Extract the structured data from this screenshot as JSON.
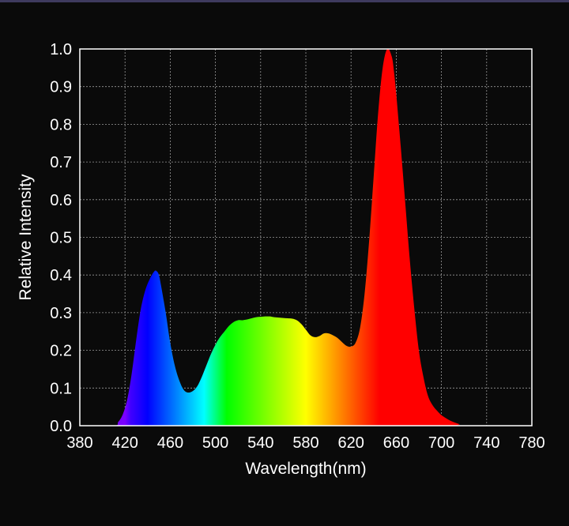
{
  "colors": {
    "background": "#0a0a0a",
    "top_bar": "#3e3a5e",
    "grid": "#9a9a9a",
    "frame": "#ffffff",
    "text": "#ffffff"
  },
  "chart_data": {
    "type": "area",
    "title": "",
    "xlabel": "Wavelength(nm)",
    "ylabel": "Relative Intensity",
    "xlim": [
      380,
      780
    ],
    "ylim": [
      0,
      1.0
    ],
    "xticks": [
      "380",
      "420",
      "460",
      "500",
      "540",
      "580",
      "620",
      "660",
      "700",
      "740",
      "780"
    ],
    "yticks": [
      "0.0",
      "0.1",
      "0.2",
      "0.3",
      "0.4",
      "0.5",
      "0.6",
      "0.7",
      "0.8",
      "0.9",
      "1.0"
    ],
    "grid": true,
    "fill": "visible-spectrum gradient by wavelength",
    "series": [
      {
        "x": [
          380,
          410,
          414,
          418,
          422,
          426,
          430,
          434,
          438,
          442,
          446,
          448,
          450,
          452,
          456,
          460,
          464,
          468,
          472,
          476,
          480,
          484,
          488,
          492,
          496,
          500,
          504,
          508,
          512,
          516,
          520,
          524,
          528,
          532,
          536,
          540,
          544,
          548,
          552,
          556,
          560,
          564,
          568,
          572,
          576,
          580,
          584,
          588,
          592,
          596,
          600,
          604,
          608,
          612,
          616,
          620,
          624,
          628,
          632,
          636,
          640,
          644,
          648,
          652,
          656,
          658,
          660,
          662,
          664,
          668,
          672,
          676,
          680,
          684,
          688,
          692,
          696,
          700,
          704,
          708,
          712,
          716,
          720,
          780
        ],
        "y": [
          0.0,
          0.0,
          0.01,
          0.03,
          0.07,
          0.14,
          0.23,
          0.31,
          0.36,
          0.39,
          0.41,
          0.41,
          0.4,
          0.37,
          0.3,
          0.22,
          0.16,
          0.12,
          0.095,
          0.088,
          0.092,
          0.105,
          0.13,
          0.16,
          0.19,
          0.215,
          0.235,
          0.25,
          0.265,
          0.275,
          0.28,
          0.28,
          0.282,
          0.285,
          0.288,
          0.289,
          0.29,
          0.29,
          0.288,
          0.287,
          0.286,
          0.285,
          0.284,
          0.28,
          0.27,
          0.255,
          0.24,
          0.235,
          0.238,
          0.245,
          0.245,
          0.24,
          0.233,
          0.222,
          0.212,
          0.21,
          0.22,
          0.26,
          0.35,
          0.49,
          0.66,
          0.83,
          0.95,
          1.0,
          0.98,
          0.94,
          0.88,
          0.81,
          0.74,
          0.59,
          0.44,
          0.31,
          0.2,
          0.13,
          0.08,
          0.055,
          0.04,
          0.028,
          0.02,
          0.013,
          0.008,
          0.004,
          0.0,
          0.0
        ]
      }
    ]
  }
}
